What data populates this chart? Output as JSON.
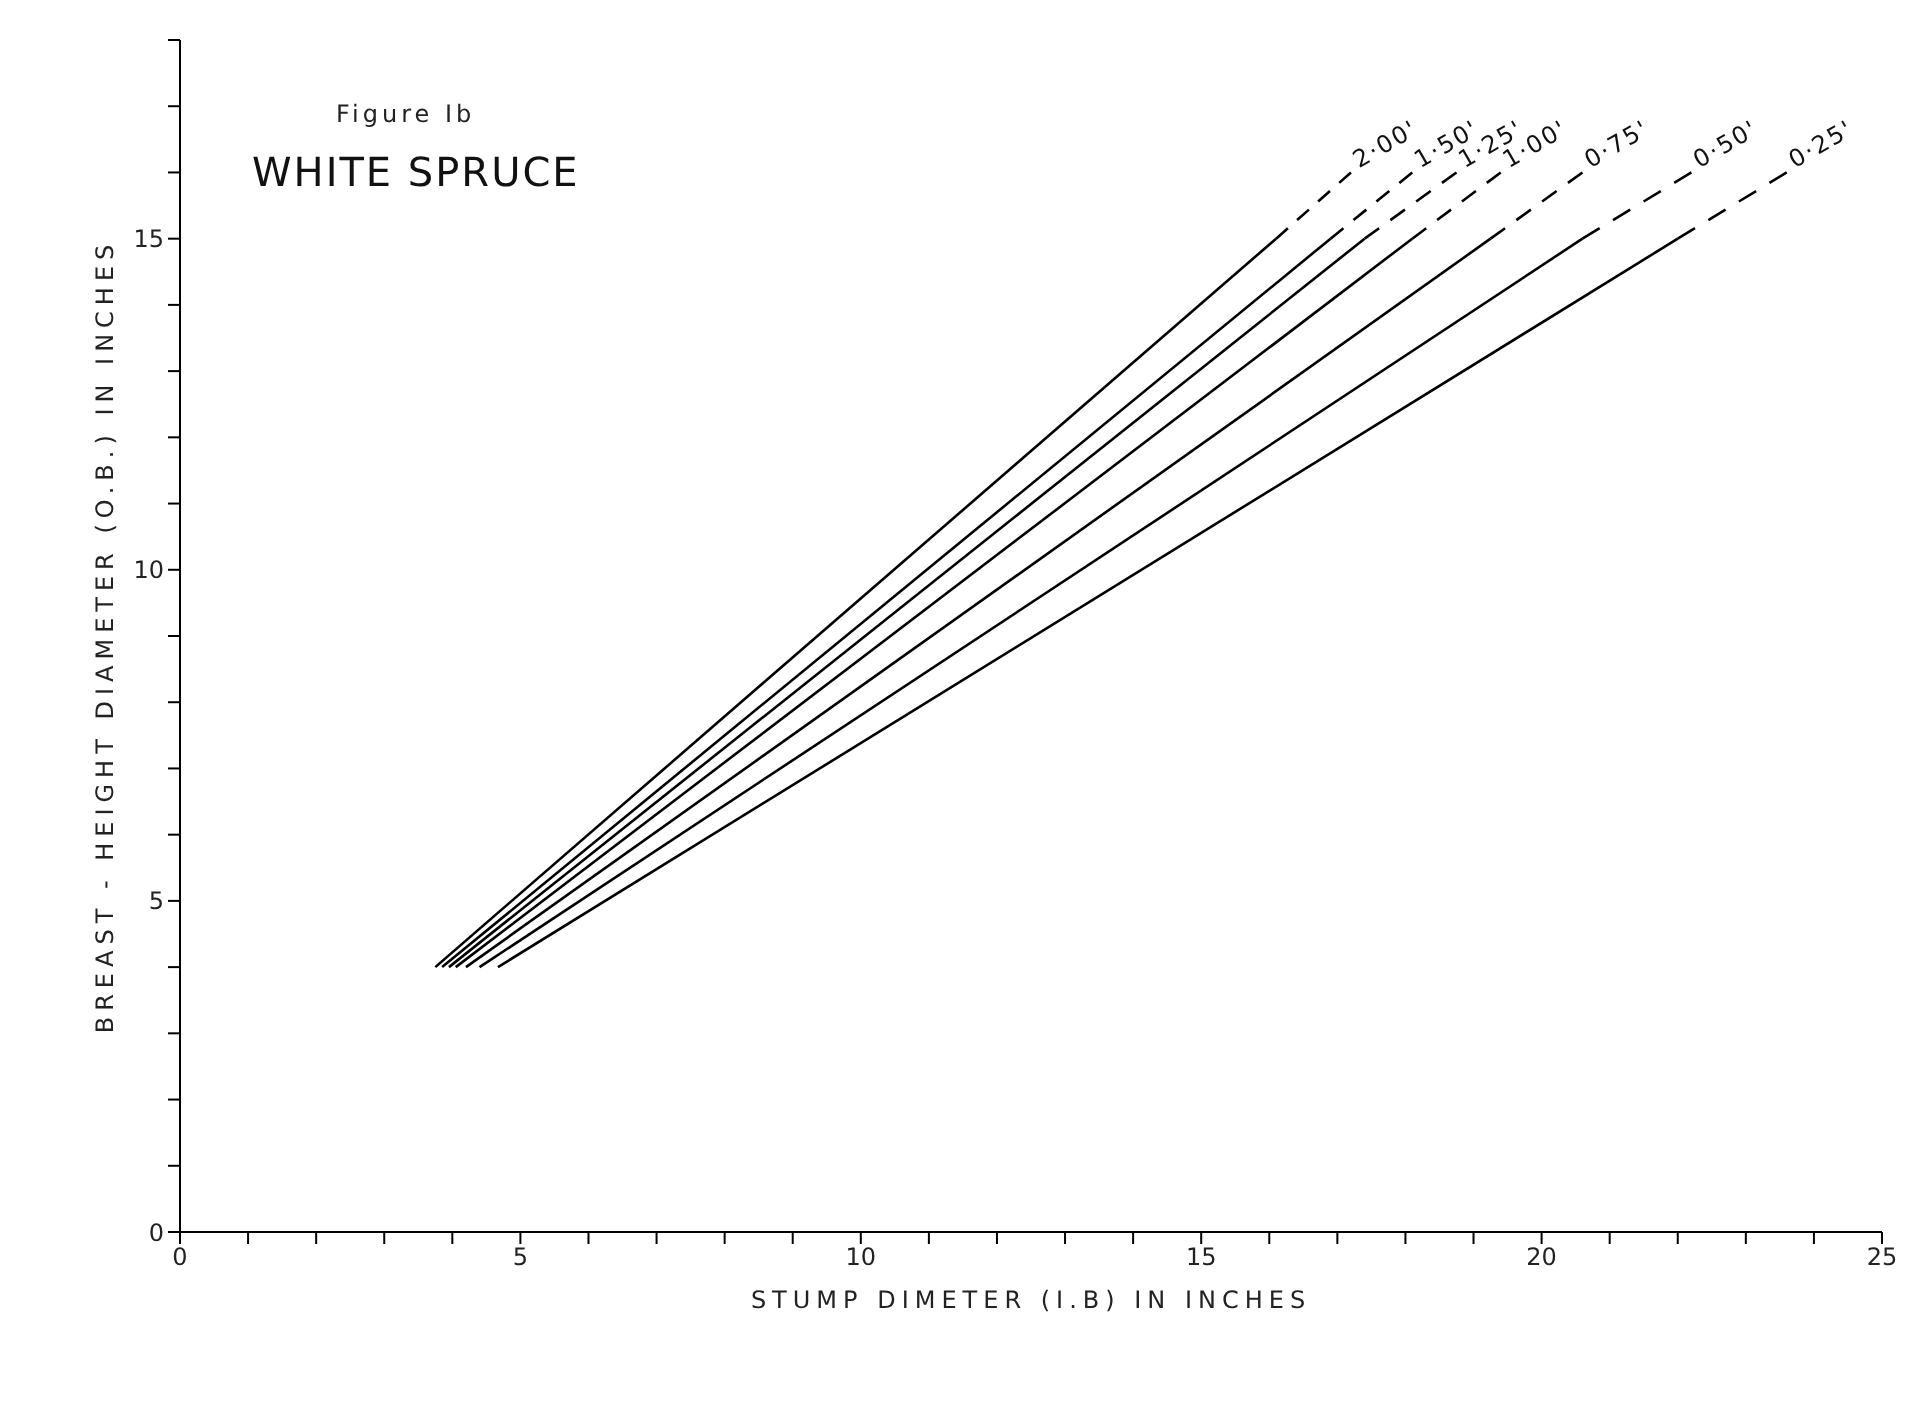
{
  "chart_data": {
    "type": "line",
    "subtitle": "Figure Ib",
    "title": "WHITE SPRUCE",
    "xlabel": "STUMP   DIMETER   (I.B)   IN   INCHES",
    "ylabel": "BREAST - HEIGHT   DIAMETER   (O.B.)   IN   INCHES",
    "xlim": [
      0,
      25
    ],
    "ylim": [
      0,
      18
    ],
    "xticks": [
      0,
      {
        "value": 1,
        "label": null
      },
      {
        "value": 2,
        "label": null
      },
      {
        "value": 3,
        "label": null
      },
      {
        "value": 4,
        "label": null
      },
      5,
      {
        "value": 6,
        "label": null
      },
      {
        "value": 7,
        "label": null
      },
      {
        "value": 8,
        "label": null
      },
      {
        "value": 9,
        "label": null
      },
      10,
      {
        "value": 11,
        "label": null
      },
      {
        "value": 12,
        "label": null
      },
      {
        "value": 13,
        "label": null
      },
      {
        "value": 14,
        "label": null
      },
      15,
      {
        "value": 16,
        "label": null
      },
      {
        "value": 17,
        "label": null
      },
      {
        "value": 18,
        "label": null
      },
      {
        "value": 19,
        "label": null
      },
      20,
      {
        "value": 21,
        "label": null
      },
      {
        "value": 22,
        "label": null
      },
      {
        "value": 23,
        "label": null
      },
      {
        "value": 24,
        "label": null
      },
      25
    ],
    "yticks": [
      0,
      {
        "value": 1,
        "label": null
      },
      {
        "value": 2,
        "label": null
      },
      {
        "value": 3,
        "label": null
      },
      {
        "value": 4,
        "label": null
      },
      5,
      {
        "value": 6,
        "label": null
      },
      {
        "value": 7,
        "label": null
      },
      {
        "value": 8,
        "label": null
      },
      {
        "value": 9,
        "label": null
      },
      10,
      {
        "value": 11,
        "label": null
      },
      {
        "value": 12,
        "label": null
      },
      {
        "value": 13,
        "label": null
      },
      {
        "value": 14,
        "label": null
      },
      15,
      {
        "value": 16,
        "label": null
      },
      {
        "value": 17,
        "label": null
      },
      {
        "value": 18,
        "label": null
      }
    ],
    "series": [
      {
        "color": "#000000",
        "x": [
          3.75,
          16.1
        ],
        "values": [
          4,
          15
        ]
      },
      {
        "name": "2·00'",
        "color": "#000000",
        "line_style": "dashed",
        "x": [
          16.1,
          17.2
        ],
        "values": [
          15,
          16
        ]
      },
      {
        "color": "#000000",
        "x": [
          3.85,
          16.9
        ],
        "values": [
          4,
          15
        ]
      },
      {
        "name": "1·50'",
        "color": "#000000",
        "line_style": "dashed",
        "x": [
          16.9,
          18.1
        ],
        "values": [
          15,
          16
        ]
      },
      {
        "color": "#000000",
        "x": [
          3.95,
          17.4
        ],
        "values": [
          4,
          15
        ]
      },
      {
        "name": "1·25'",
        "color": "#000000",
        "line_style": "dashed",
        "x": [
          17.4,
          18.75
        ],
        "values": [
          15,
          16
        ]
      },
      {
        "color": "#000000",
        "x": [
          4.05,
          18.1
        ],
        "values": [
          4,
          15
        ]
      },
      {
        "name": "1·00'",
        "color": "#000000",
        "line_style": "dashed",
        "x": [
          18.1,
          19.4
        ],
        "values": [
          15,
          16
        ]
      },
      {
        "color": "#000000",
        "x": [
          4.2,
          19.25
        ],
        "values": [
          4,
          15
        ]
      },
      {
        "name": "0·75'",
        "color": "#000000",
        "line_style": "dashed",
        "x": [
          19.25,
          20.6
        ],
        "values": [
          15,
          16
        ]
      },
      {
        "color": "#000000",
        "x": [
          4.4,
          20.6
        ],
        "values": [
          4,
          15
        ]
      },
      {
        "name": "0·50'",
        "color": "#000000",
        "line_style": "dashed",
        "x": [
          20.6,
          22.2
        ],
        "values": [
          15,
          16
        ]
      },
      {
        "color": "#000000",
        "x": [
          4.67,
          22.0
        ],
        "values": [
          4,
          15
        ]
      },
      {
        "name": "0·25'",
        "color": "#000000",
        "line_style": "dashed",
        "x": [
          22.0,
          23.6
        ],
        "values": [
          15,
          16
        ]
      }
    ]
  }
}
